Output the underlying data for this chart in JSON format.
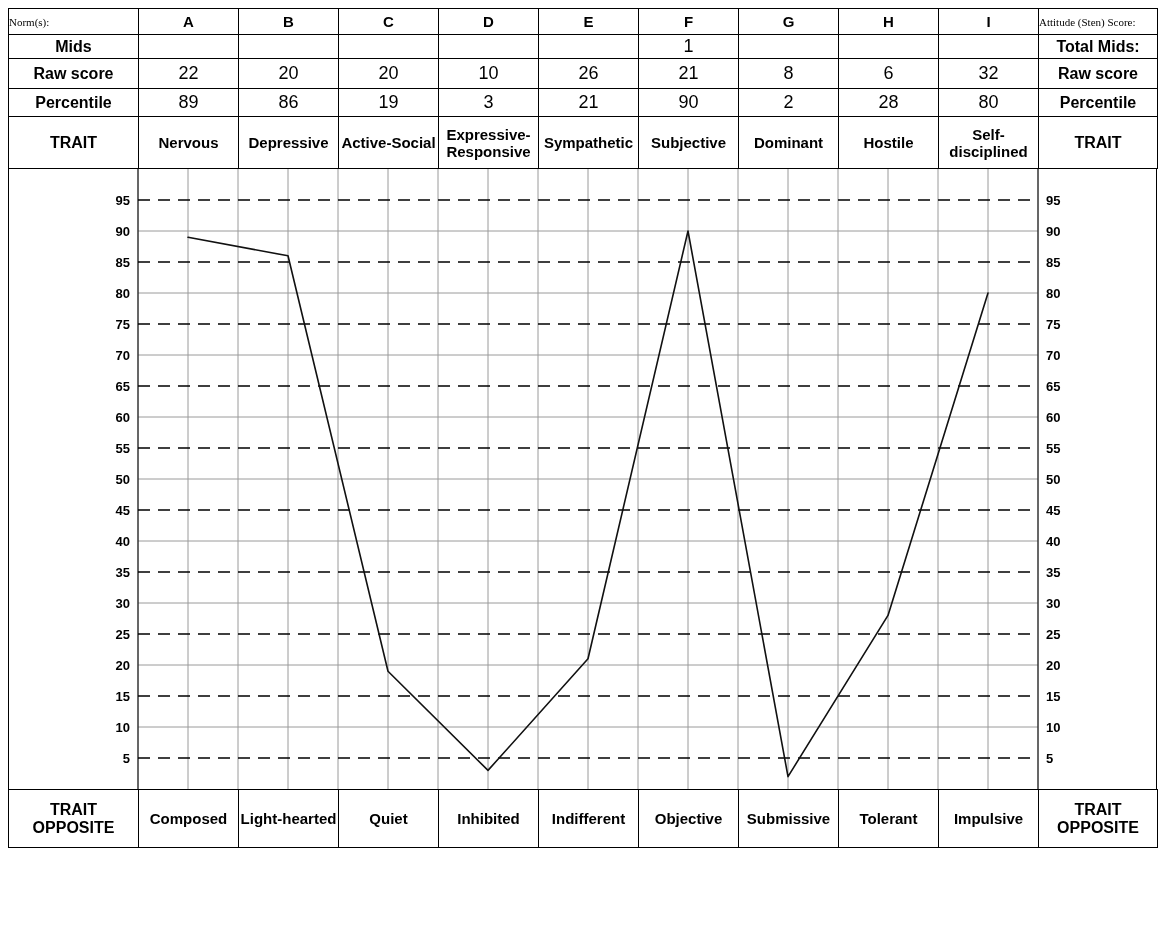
{
  "chart_data": {
    "type": "line",
    "categories": [
      "Nervous",
      "Depressive",
      "Active-Social",
      "Expressive-Responsive",
      "Sympathetic",
      "Subjective",
      "Dominant",
      "Hostile",
      "Self-disciplined"
    ],
    "series": [
      {
        "color": "#111111",
        "values": [
          89,
          86,
          19,
          3,
          21,
          90,
          2,
          28,
          80
        ]
      }
    ],
    "data_labels": true,
    "ylim": [
      0,
      100
    ],
    "yticks": [
      5,
      10,
      15,
      20,
      25,
      30,
      35,
      40,
      45,
      50,
      55,
      60,
      65,
      70,
      75,
      80,
      85,
      90,
      95
    ],
    "y2lim": [
      0,
      100
    ],
    "y2ticks": [
      5,
      10,
      15,
      20,
      25,
      30,
      35,
      40,
      45,
      50,
      55,
      60,
      65,
      70,
      75,
      80,
      85,
      90,
      95
    ],
    "grid": true,
    "annotations": [
      "Norm(s):",
      "A",
      "B",
      "C",
      "D",
      "E",
      "F",
      "G",
      "H",
      "I",
      "Attitude (Sten) Score:",
      "Mids",
      null,
      null,
      null,
      null,
      null,
      "1",
      null,
      null,
      null,
      "Total Mids:",
      "Raw score",
      "22",
      "20",
      "20",
      "10",
      "26",
      "21",
      "8",
      "6",
      "32",
      "Raw score",
      "Percentile",
      "Percentile",
      "TRAIT",
      "TRAIT",
      "TRAIT OPPOSITE",
      "Composed",
      "Light-hearted",
      "Quiet",
      "Inhibited",
      "Indifferent",
      "Objective",
      "Submissive",
      "Tolerant",
      "Impulsive",
      "TRAIT OPPOSITE"
    ]
  }
}
